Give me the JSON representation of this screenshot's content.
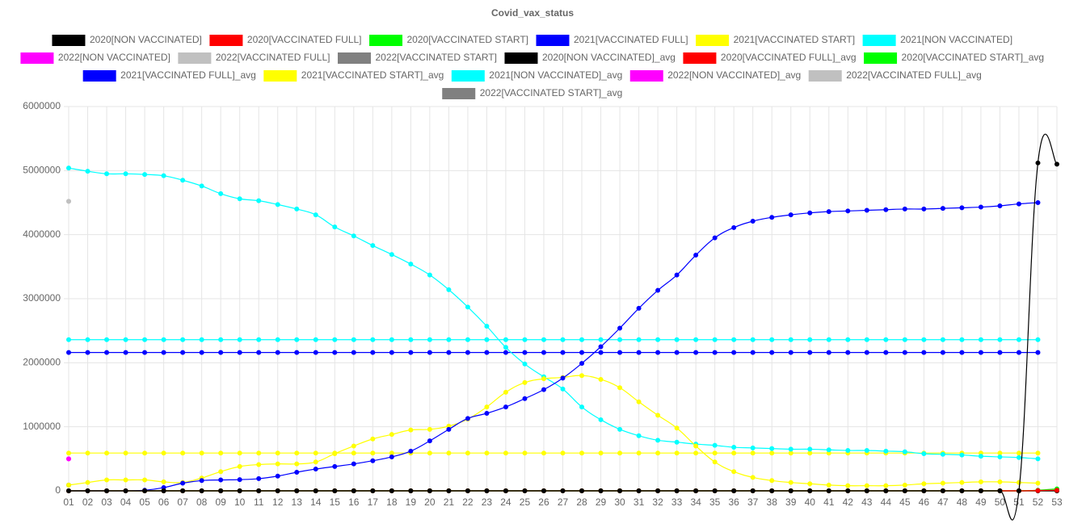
{
  "chart_data": {
    "type": "line",
    "title": "Covid_vax_status",
    "categories": [
      "01",
      "02",
      "03",
      "04",
      "05",
      "06",
      "07",
      "08",
      "09",
      "10",
      "11",
      "12",
      "13",
      "14",
      "15",
      "16",
      "17",
      "18",
      "19",
      "20",
      "21",
      "22",
      "23",
      "24",
      "25",
      "26",
      "27",
      "28",
      "29",
      "30",
      "31",
      "32",
      "33",
      "34",
      "35",
      "36",
      "37",
      "38",
      "39",
      "40",
      "41",
      "42",
      "43",
      "44",
      "45",
      "46",
      "47",
      "48",
      "49",
      "50",
      "51",
      "52",
      "53"
    ],
    "ylim": [
      0,
      6000000
    ],
    "yticks": [
      0,
      1000000,
      2000000,
      3000000,
      4000000,
      5000000,
      6000000
    ],
    "grid": true,
    "legend": "top",
    "series": [
      {
        "name": "2020[NON VACCINATED]",
        "color": "#000000",
        "values": [
          0,
          0,
          0,
          0,
          0,
          0,
          0,
          0,
          0,
          0,
          0,
          0,
          0,
          0,
          0,
          0,
          0,
          0,
          0,
          0,
          0,
          0,
          0,
          0,
          0,
          0,
          0,
          0,
          0,
          0,
          0,
          0,
          0,
          0,
          0,
          0,
          0,
          0,
          0,
          0,
          0,
          0,
          0,
          0,
          0,
          0,
          0,
          0,
          0,
          0,
          0,
          5120000,
          5100000
        ]
      },
      {
        "name": "2020[VACCINATED FULL]",
        "color": "#ff0000",
        "values": [
          0,
          0,
          0,
          0,
          0,
          0,
          0,
          0,
          0,
          0,
          0,
          0,
          0,
          0,
          0,
          0,
          0,
          0,
          0,
          0,
          0,
          0,
          0,
          0,
          0,
          0,
          0,
          0,
          0,
          0,
          0,
          0,
          0,
          0,
          0,
          0,
          0,
          0,
          0,
          0,
          0,
          0,
          0,
          0,
          0,
          0,
          0,
          0,
          0,
          0,
          0,
          5000,
          10000
        ]
      },
      {
        "name": "2020[VACCINATED START]",
        "color": "#00ff00",
        "values": [
          0,
          0,
          0,
          0,
          0,
          0,
          0,
          0,
          0,
          0,
          0,
          0,
          0,
          0,
          0,
          0,
          0,
          0,
          0,
          0,
          0,
          0,
          0,
          0,
          0,
          0,
          0,
          0,
          0,
          0,
          0,
          0,
          0,
          0,
          0,
          0,
          0,
          0,
          0,
          0,
          0,
          0,
          0,
          0,
          0,
          0,
          0,
          0,
          0,
          0,
          0,
          10000,
          30000
        ]
      },
      {
        "name": "2021[VACCINATED FULL]",
        "color": "#0000ff",
        "values": [
          0,
          0,
          0,
          0,
          10000,
          50000,
          120000,
          160000,
          170000,
          175000,
          190000,
          230000,
          290000,
          340000,
          380000,
          420000,
          470000,
          530000,
          620000,
          780000,
          960000,
          1130000,
          1210000,
          1310000,
          1440000,
          1580000,
          1760000,
          1990000,
          2250000,
          2540000,
          2850000,
          3130000,
          3370000,
          3680000,
          3950000,
          4110000,
          4210000,
          4270000,
          4310000,
          4340000,
          4360000,
          4370000,
          4380000,
          4390000,
          4400000,
          4400000,
          4410000,
          4420000,
          4430000,
          4450000,
          4480000,
          4500000,
          null
        ]
      },
      {
        "name": "2021[VACCINATED START]",
        "color": "#ffff00",
        "values": [
          90000,
          130000,
          170000,
          170000,
          170000,
          140000,
          130000,
          200000,
          300000,
          380000,
          410000,
          420000,
          420000,
          450000,
          580000,
          700000,
          810000,
          880000,
          950000,
          960000,
          1010000,
          1120000,
          1310000,
          1540000,
          1690000,
          1750000,
          1770000,
          1800000,
          1740000,
          1610000,
          1390000,
          1180000,
          980000,
          700000,
          450000,
          300000,
          210000,
          160000,
          130000,
          110000,
          90000,
          80000,
          80000,
          80000,
          90000,
          110000,
          120000,
          130000,
          140000,
          140000,
          130000,
          120000,
          null
        ]
      },
      {
        "name": "2021[NON VACCINATED]",
        "color": "#00ffff",
        "values": [
          5040000,
          4990000,
          4950000,
          4950000,
          4940000,
          4920000,
          4850000,
          4760000,
          4640000,
          4560000,
          4530000,
          4470000,
          4400000,
          4310000,
          4120000,
          3980000,
          3830000,
          3690000,
          3540000,
          3370000,
          3140000,
          2870000,
          2570000,
          2240000,
          1980000,
          1780000,
          1590000,
          1310000,
          1110000,
          960000,
          860000,
          790000,
          760000,
          730000,
          710000,
          680000,
          670000,
          660000,
          650000,
          650000,
          640000,
          630000,
          630000,
          620000,
          610000,
          580000,
          570000,
          560000,
          540000,
          530000,
          520000,
          500000,
          null
        ]
      },
      {
        "name": "2022[NON VACCINATED]",
        "color": "#ff00ff",
        "values": [
          500000,
          null,
          null,
          null,
          null,
          null,
          null,
          null,
          null,
          null,
          null,
          null,
          null,
          null,
          null,
          null,
          null,
          null,
          null,
          null,
          null,
          null,
          null,
          null,
          null,
          null,
          null,
          null,
          null,
          null,
          null,
          null,
          null,
          null,
          null,
          null,
          null,
          null,
          null,
          null,
          null,
          null,
          null,
          null,
          null,
          null,
          null,
          null,
          null,
          null,
          null,
          null,
          null
        ]
      },
      {
        "name": "2022[VACCINATED FULL]",
        "color": "#c0c0c0",
        "values": [
          4520000,
          null,
          null,
          null,
          null,
          null,
          null,
          null,
          null,
          null,
          null,
          null,
          null,
          null,
          null,
          null,
          null,
          null,
          null,
          null,
          null,
          null,
          null,
          null,
          null,
          null,
          null,
          null,
          null,
          null,
          null,
          null,
          null,
          null,
          null,
          null,
          null,
          null,
          null,
          null,
          null,
          null,
          null,
          null,
          null,
          null,
          null,
          null,
          null,
          null,
          null,
          null,
          null
        ]
      },
      {
        "name": "2022[VACCINATED START]",
        "color": "#808080",
        "values": [
          90000,
          null,
          null,
          null,
          null,
          null,
          null,
          null,
          null,
          null,
          null,
          null,
          null,
          null,
          null,
          null,
          null,
          null,
          null,
          null,
          null,
          null,
          null,
          null,
          null,
          null,
          null,
          null,
          null,
          null,
          null,
          null,
          null,
          null,
          null,
          null,
          null,
          null,
          null,
          null,
          null,
          null,
          null,
          null,
          null,
          null,
          null,
          null,
          null,
          null,
          null,
          null,
          null
        ]
      },
      {
        "name": "2020[NON VACCINATED]_avg",
        "color": "#000000",
        "values": [
          0,
          0,
          0,
          0,
          0,
          0,
          0,
          0,
          0,
          0,
          0,
          0,
          0,
          0,
          0,
          0,
          0,
          0,
          0,
          0,
          0,
          0,
          0,
          0,
          0,
          0,
          0,
          0,
          0,
          0,
          0,
          0,
          0,
          0,
          0,
          0,
          0,
          0,
          0,
          0,
          0,
          0,
          0,
          0,
          0,
          0,
          0,
          0,
          0,
          0,
          0,
          0,
          0
        ]
      },
      {
        "name": "2020[VACCINATED FULL]_avg",
        "color": "#ff0000",
        "values": [
          0,
          0,
          0,
          0,
          0,
          0,
          0,
          0,
          0,
          0,
          0,
          0,
          0,
          0,
          0,
          0,
          0,
          0,
          0,
          0,
          0,
          0,
          0,
          0,
          0,
          0,
          0,
          0,
          0,
          0,
          0,
          0,
          0,
          0,
          0,
          0,
          0,
          0,
          0,
          0,
          0,
          0,
          0,
          0,
          0,
          0,
          0,
          0,
          0,
          0,
          0,
          0,
          0
        ]
      },
      {
        "name": "2020[VACCINATED START]_avg",
        "color": "#00ff00",
        "values": [
          0,
          0,
          0,
          0,
          0,
          0,
          0,
          0,
          0,
          0,
          0,
          0,
          0,
          0,
          0,
          0,
          0,
          0,
          0,
          0,
          0,
          0,
          0,
          0,
          0,
          0,
          0,
          0,
          0,
          0,
          0,
          0,
          0,
          0,
          0,
          0,
          0,
          0,
          0,
          0,
          0,
          0,
          0,
          0,
          0,
          0,
          0,
          0,
          0,
          0,
          0,
          0,
          0
        ]
      },
      {
        "name": "2021[VACCINATED FULL]_avg",
        "color": "#0000ff",
        "values": [
          2160000,
          2160000,
          2160000,
          2160000,
          2160000,
          2160000,
          2160000,
          2160000,
          2160000,
          2160000,
          2160000,
          2160000,
          2160000,
          2160000,
          2160000,
          2160000,
          2160000,
          2160000,
          2160000,
          2160000,
          2160000,
          2160000,
          2160000,
          2160000,
          2160000,
          2160000,
          2160000,
          2160000,
          2160000,
          2160000,
          2160000,
          2160000,
          2160000,
          2160000,
          2160000,
          2160000,
          2160000,
          2160000,
          2160000,
          2160000,
          2160000,
          2160000,
          2160000,
          2160000,
          2160000,
          2160000,
          2160000,
          2160000,
          2160000,
          2160000,
          2160000,
          2160000,
          null
        ]
      },
      {
        "name": "2021[VACCINATED START]_avg",
        "color": "#ffff00",
        "values": [
          590000,
          590000,
          590000,
          590000,
          590000,
          590000,
          590000,
          590000,
          590000,
          590000,
          590000,
          590000,
          590000,
          590000,
          590000,
          590000,
          590000,
          590000,
          590000,
          590000,
          590000,
          590000,
          590000,
          590000,
          590000,
          590000,
          590000,
          590000,
          590000,
          590000,
          590000,
          590000,
          590000,
          590000,
          590000,
          590000,
          590000,
          590000,
          590000,
          590000,
          590000,
          590000,
          590000,
          590000,
          590000,
          590000,
          590000,
          590000,
          590000,
          590000,
          590000,
          590000,
          null
        ]
      },
      {
        "name": "2021[NON VACCINATED]_avg",
        "color": "#00ffff",
        "values": [
          2360000,
          2360000,
          2360000,
          2360000,
          2360000,
          2360000,
          2360000,
          2360000,
          2360000,
          2360000,
          2360000,
          2360000,
          2360000,
          2360000,
          2360000,
          2360000,
          2360000,
          2360000,
          2360000,
          2360000,
          2360000,
          2360000,
          2360000,
          2360000,
          2360000,
          2360000,
          2360000,
          2360000,
          2360000,
          2360000,
          2360000,
          2360000,
          2360000,
          2360000,
          2360000,
          2360000,
          2360000,
          2360000,
          2360000,
          2360000,
          2360000,
          2360000,
          2360000,
          2360000,
          2360000,
          2360000,
          2360000,
          2360000,
          2360000,
          2360000,
          2360000,
          2360000,
          null
        ]
      },
      {
        "name": "2022[NON VACCINATED]_avg",
        "color": "#ff00ff",
        "values": [
          500000,
          null,
          null,
          null,
          null,
          null,
          null,
          null,
          null,
          null,
          null,
          null,
          null,
          null,
          null,
          null,
          null,
          null,
          null,
          null,
          null,
          null,
          null,
          null,
          null,
          null,
          null,
          null,
          null,
          null,
          null,
          null,
          null,
          null,
          null,
          null,
          null,
          null,
          null,
          null,
          null,
          null,
          null,
          null,
          null,
          null,
          null,
          null,
          null,
          null,
          null,
          null,
          null
        ]
      },
      {
        "name": "2022[VACCINATED FULL]_avg",
        "color": "#c0c0c0",
        "values": [
          4520000,
          null,
          null,
          null,
          null,
          null,
          null,
          null,
          null,
          null,
          null,
          null,
          null,
          null,
          null,
          null,
          null,
          null,
          null,
          null,
          null,
          null,
          null,
          null,
          null,
          null,
          null,
          null,
          null,
          null,
          null,
          null,
          null,
          null,
          null,
          null,
          null,
          null,
          null,
          null,
          null,
          null,
          null,
          null,
          null,
          null,
          null,
          null,
          null,
          null,
          null,
          null,
          null
        ]
      },
      {
        "name": "2022[VACCINATED START]_avg",
        "color": "#808080",
        "values": [
          90000,
          null,
          null,
          null,
          null,
          null,
          null,
          null,
          null,
          null,
          null,
          null,
          null,
          null,
          null,
          null,
          null,
          null,
          null,
          null,
          null,
          null,
          null,
          null,
          null,
          null,
          null,
          null,
          null,
          null,
          null,
          null,
          null,
          null,
          null,
          null,
          null,
          null,
          null,
          null,
          null,
          null,
          null,
          null,
          null,
          null,
          null,
          null,
          null,
          null,
          null,
          null,
          null
        ]
      }
    ]
  }
}
